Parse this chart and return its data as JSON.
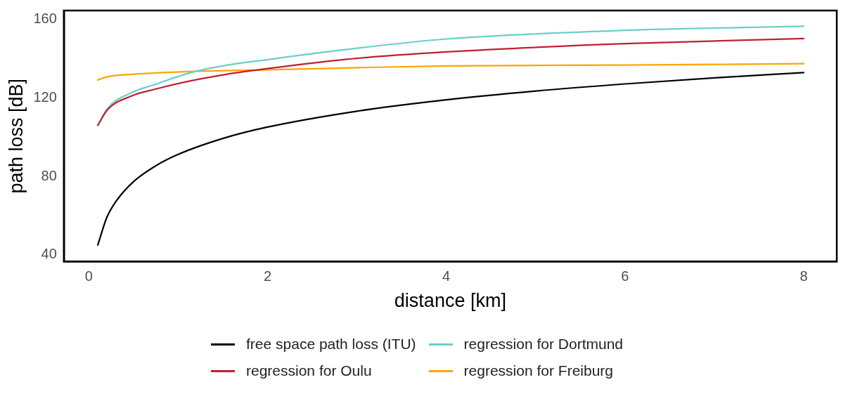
{
  "chart_data": {
    "type": "line",
    "xlabel": "distance [km]",
    "ylabel": "path loss [dB]",
    "xlim": [
      -0.28,
      8.37
    ],
    "xticks": [
      0,
      2,
      4,
      6,
      8
    ],
    "ylim": [
      36.5,
      164.5
    ],
    "yticks": [
      40,
      80,
      120,
      160
    ],
    "grid": false,
    "legend": "bottom",
    "marker": "none",
    "line_style": "solid",
    "series": [
      {
        "name": "free space path loss (ITU)",
        "color": "#000000",
        "x": [
          0.1,
          0.2,
          0.3,
          0.5,
          0.75,
          1,
          1.5,
          2,
          3,
          4,
          5,
          6,
          7,
          8
        ],
        "values": [
          45,
          58.9,
          67,
          77.3,
          85.4,
          91.2,
          99.3,
          105.1,
          113.2,
          119,
          123.5,
          127.1,
          130.2,
          132.9
        ]
      },
      {
        "name": "regression for Oulu",
        "color": "#c0202f",
        "x": [
          0.1,
          0.21,
          0.48,
          0.74,
          1.12,
          1.54,
          2,
          2.87,
          4,
          6,
          8
        ],
        "values": [
          106,
          114,
          121,
          124.4,
          128.5,
          132,
          134.9,
          139.6,
          143.4,
          147.6,
          150.2
        ]
      },
      {
        "name": "regression for Dortmund",
        "color": "#6ccfc6",
        "x": [
          0.1,
          0.21,
          0.48,
          0.74,
          1.12,
          1.54,
          2,
          2.87,
          4,
          6,
          8
        ],
        "values": [
          106,
          114.7,
          122.7,
          126.8,
          132.6,
          136.6,
          139.5,
          144.6,
          150,
          154.4,
          156.5
        ]
      },
      {
        "name": "regression for Freiburg",
        "color": "#ffa500",
        "x": [
          0.1,
          0.21,
          0.48,
          1.12,
          2,
          2.87,
          4,
          6,
          8
        ],
        "values": [
          129.1,
          130.8,
          132,
          133.4,
          134.3,
          135.2,
          136.3,
          136.7,
          137.4
        ]
      }
    ]
  }
}
